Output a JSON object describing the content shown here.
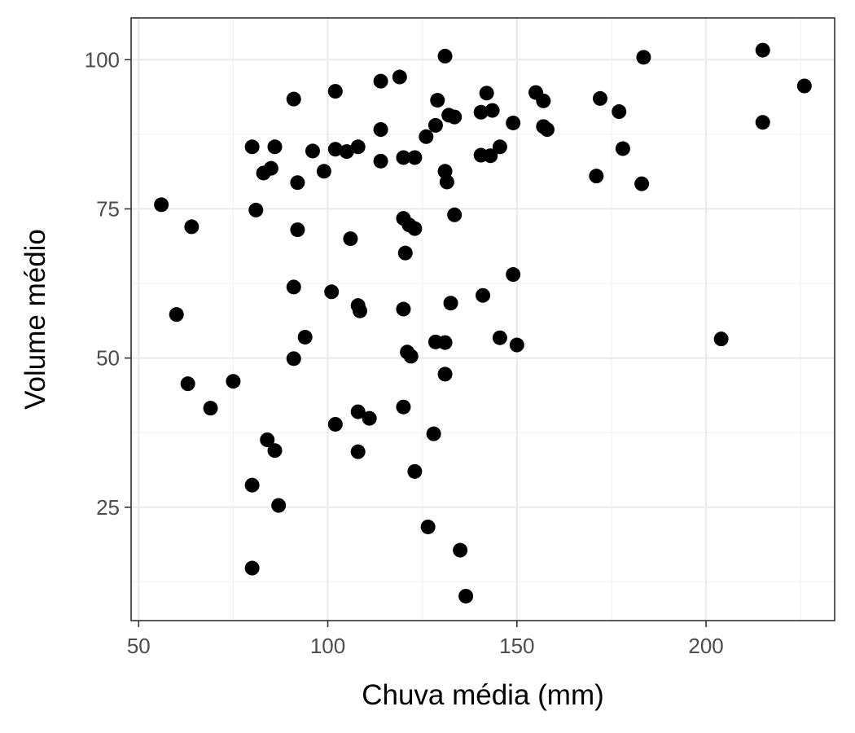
{
  "chart_data": {
    "type": "scatter",
    "xlabel": "Chuva média (mm)",
    "ylabel": "Volume médio",
    "xlim": [
      48,
      234
    ],
    "ylim": [
      6,
      107
    ],
    "x_ticks": [
      50,
      100,
      150,
      200
    ],
    "y_ticks": [
      25,
      50,
      75,
      100
    ],
    "x_minor": [
      75,
      125,
      175,
      225
    ],
    "y_minor": [
      12.5,
      37.5,
      62.5,
      87.5
    ],
    "grid": true,
    "legend": "none",
    "point_color": "#000000",
    "points": [
      {
        "x": 56,
        "y": 75.7
      },
      {
        "x": 60,
        "y": 57.3
      },
      {
        "x": 63,
        "y": 45.7
      },
      {
        "x": 64,
        "y": 72.0
      },
      {
        "x": 69,
        "y": 41.6
      },
      {
        "x": 75,
        "y": 46.1
      },
      {
        "x": 80,
        "y": 85.4
      },
      {
        "x": 80,
        "y": 28.7
      },
      {
        "x": 80,
        "y": 14.8
      },
      {
        "x": 81,
        "y": 74.8
      },
      {
        "x": 83,
        "y": 81.0
      },
      {
        "x": 84,
        "y": 36.3
      },
      {
        "x": 85,
        "y": 81.8
      },
      {
        "x": 86,
        "y": 34.5
      },
      {
        "x": 86,
        "y": 85.4
      },
      {
        "x": 87,
        "y": 25.3
      },
      {
        "x": 91,
        "y": 93.4
      },
      {
        "x": 91,
        "y": 61.9
      },
      {
        "x": 91,
        "y": 49.9
      },
      {
        "x": 92,
        "y": 79.4
      },
      {
        "x": 92,
        "y": 71.5
      },
      {
        "x": 94,
        "y": 53.5
      },
      {
        "x": 96,
        "y": 84.7
      },
      {
        "x": 99,
        "y": 81.3
      },
      {
        "x": 101,
        "y": 61.1
      },
      {
        "x": 102,
        "y": 94.7
      },
      {
        "x": 102,
        "y": 85.0
      },
      {
        "x": 102,
        "y": 38.9
      },
      {
        "x": 105,
        "y": 84.6
      },
      {
        "x": 106,
        "y": 70.0
      },
      {
        "x": 108,
        "y": 85.4
      },
      {
        "x": 108,
        "y": 58.8
      },
      {
        "x": 108,
        "y": 41.0
      },
      {
        "x": 108,
        "y": 34.3
      },
      {
        "x": 108.5,
        "y": 57.9
      },
      {
        "x": 111,
        "y": 39.9
      },
      {
        "x": 114,
        "y": 96.4
      },
      {
        "x": 114,
        "y": 88.3
      },
      {
        "x": 114,
        "y": 83.0
      },
      {
        "x": 119,
        "y": 97.1
      },
      {
        "x": 120,
        "y": 83.6
      },
      {
        "x": 120,
        "y": 73.4
      },
      {
        "x": 120,
        "y": 58.2
      },
      {
        "x": 120,
        "y": 41.8
      },
      {
        "x": 120.5,
        "y": 67.6
      },
      {
        "x": 121,
        "y": 51.0
      },
      {
        "x": 121.5,
        "y": 72.3
      },
      {
        "x": 122,
        "y": 50.3
      },
      {
        "x": 123,
        "y": 83.6
      },
      {
        "x": 123,
        "y": 71.7
      },
      {
        "x": 123,
        "y": 31.0
      },
      {
        "x": 126,
        "y": 87.1
      },
      {
        "x": 126.5,
        "y": 21.7
      },
      {
        "x": 128,
        "y": 37.3
      },
      {
        "x": 128.5,
        "y": 52.7
      },
      {
        "x": 128.5,
        "y": 89.0
      },
      {
        "x": 129,
        "y": 93.2
      },
      {
        "x": 131,
        "y": 100.6
      },
      {
        "x": 131,
        "y": 81.3
      },
      {
        "x": 131,
        "y": 52.6
      },
      {
        "x": 131,
        "y": 47.3
      },
      {
        "x": 131.5,
        "y": 79.5
      },
      {
        "x": 132,
        "y": 90.7
      },
      {
        "x": 132.5,
        "y": 59.2
      },
      {
        "x": 133.5,
        "y": 90.4
      },
      {
        "x": 133.5,
        "y": 74.0
      },
      {
        "x": 135,
        "y": 17.8
      },
      {
        "x": 136.5,
        "y": 10.1
      },
      {
        "x": 140.5,
        "y": 91.2
      },
      {
        "x": 140.5,
        "y": 84.0
      },
      {
        "x": 141,
        "y": 60.5
      },
      {
        "x": 142,
        "y": 94.4
      },
      {
        "x": 143,
        "y": 83.9
      },
      {
        "x": 143.5,
        "y": 91.5
      },
      {
        "x": 145.5,
        "y": 85.4
      },
      {
        "x": 145.5,
        "y": 53.4
      },
      {
        "x": 149,
        "y": 89.4
      },
      {
        "x": 149,
        "y": 64.0
      },
      {
        "x": 150,
        "y": 52.2
      },
      {
        "x": 155,
        "y": 94.5
      },
      {
        "x": 157,
        "y": 93.1
      },
      {
        "x": 157,
        "y": 88.8
      },
      {
        "x": 158,
        "y": 88.3
      },
      {
        "x": 171,
        "y": 80.5
      },
      {
        "x": 172,
        "y": 93.5
      },
      {
        "x": 177,
        "y": 91.3
      },
      {
        "x": 178,
        "y": 85.1
      },
      {
        "x": 183,
        "y": 79.2
      },
      {
        "x": 183.5,
        "y": 100.4
      },
      {
        "x": 204,
        "y": 53.2
      },
      {
        "x": 215,
        "y": 101.6
      },
      {
        "x": 215,
        "y": 89.5
      },
      {
        "x": 226,
        "y": 95.6
      }
    ]
  }
}
